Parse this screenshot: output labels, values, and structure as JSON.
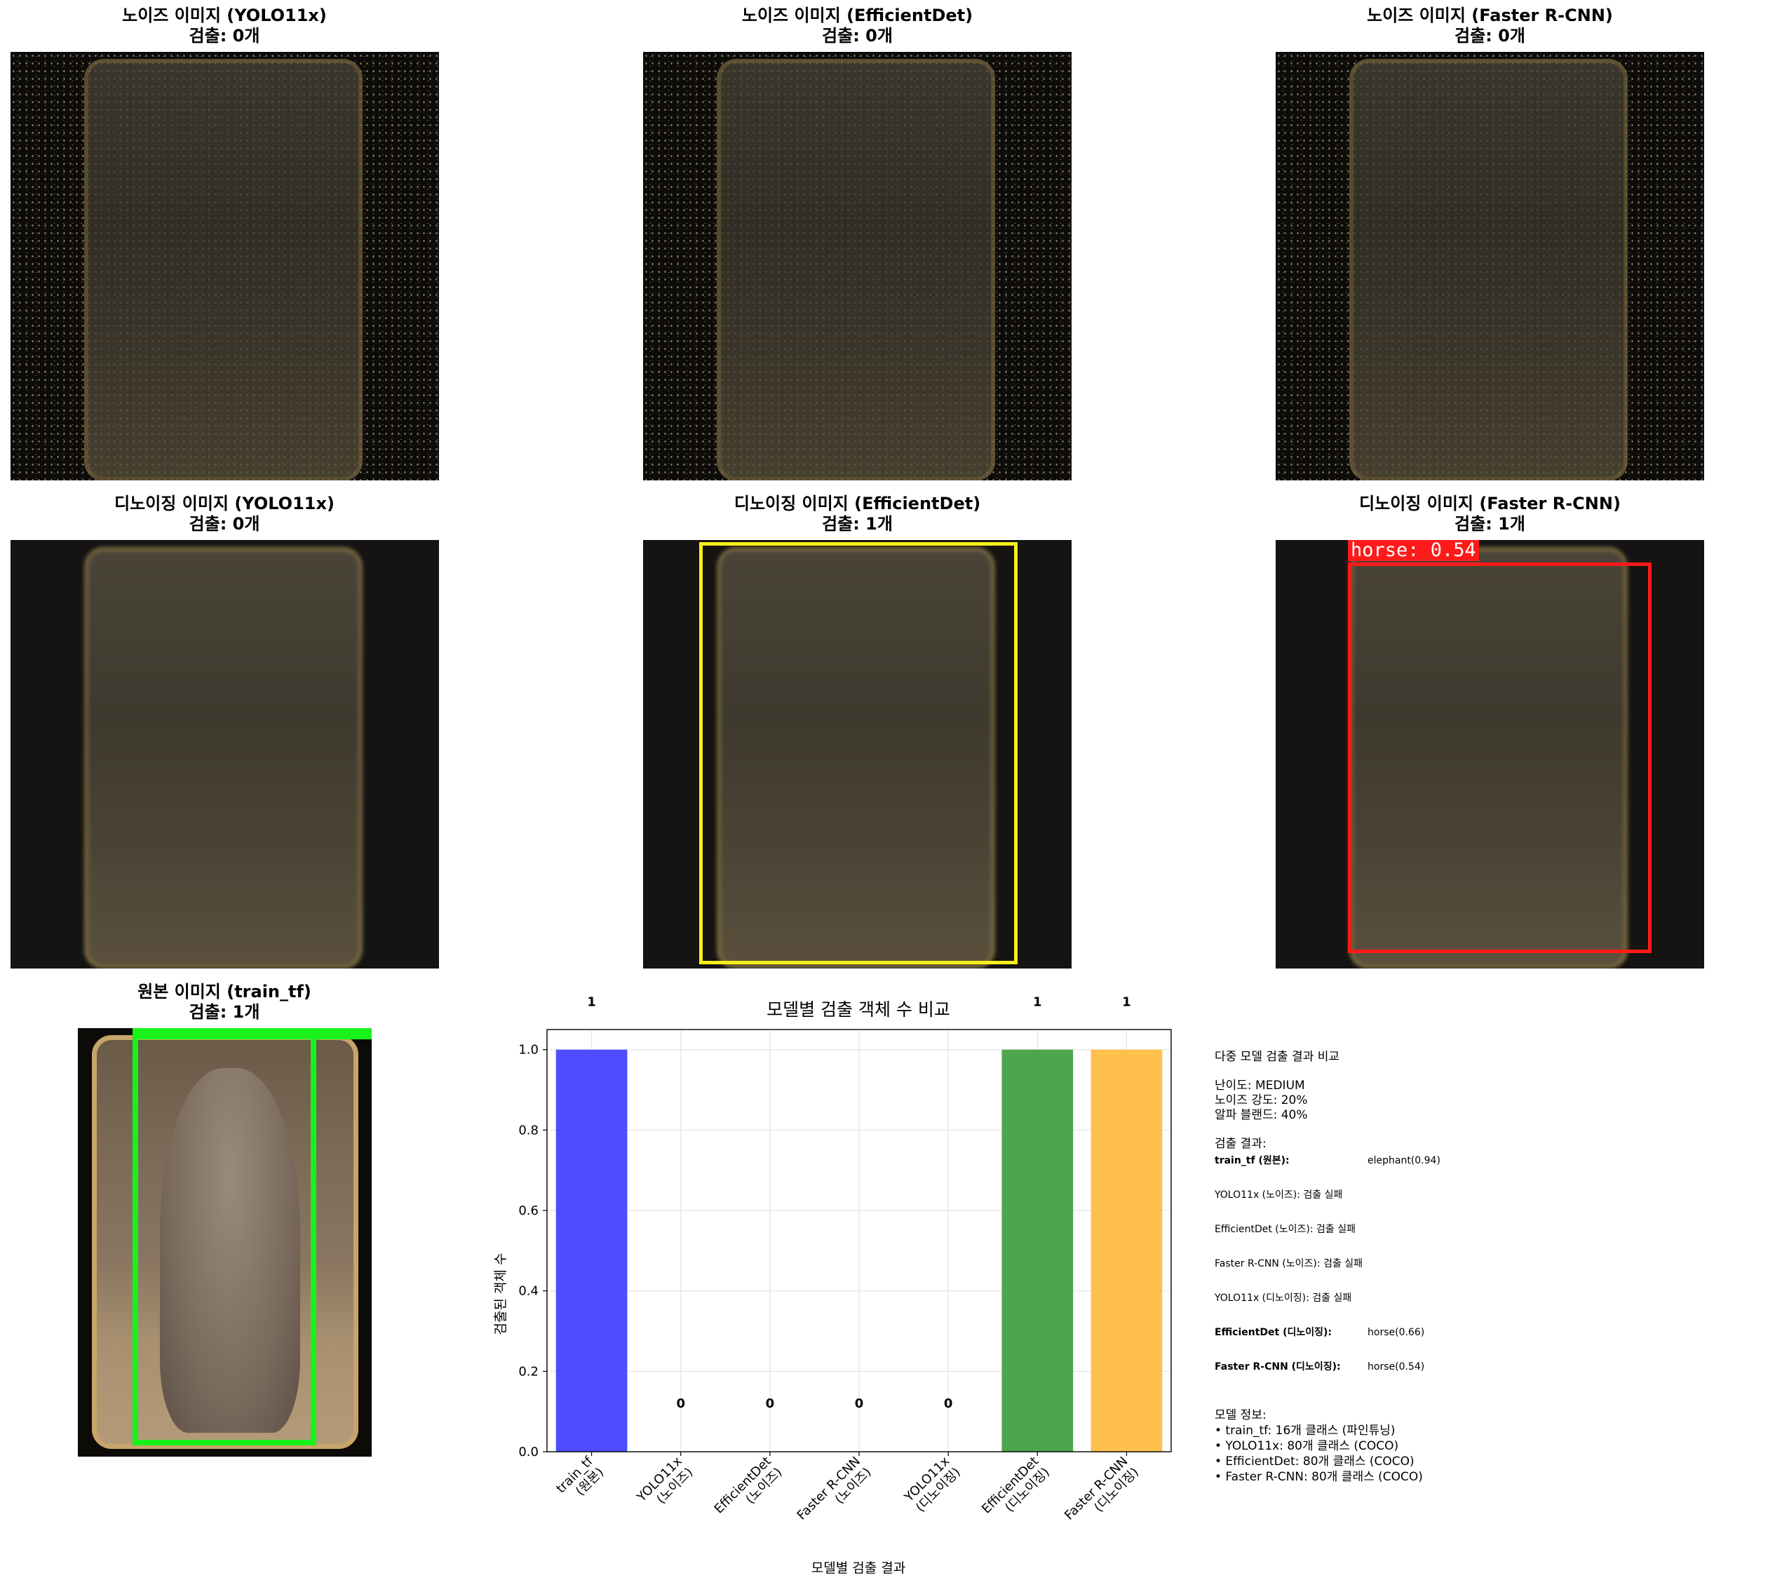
{
  "panels": {
    "noisy_yolo": {
      "title1": "노이즈 이미지 (YOLO11x)",
      "title2": "검출: 0개"
    },
    "noisy_effdet": {
      "title1": "노이즈 이미지 (EfficientDet)",
      "title2": "검출: 0개"
    },
    "noisy_frcnn": {
      "title1": "노이즈 이미지 (Faster R-CNN)",
      "title2": "검출: 0개"
    },
    "denoised_yolo": {
      "title1": "디노이징 이미지 (YOLO11x)",
      "title2": "검출: 0개"
    },
    "denoised_effdet": {
      "title1": "디노이징 이미지 (EfficientDet)",
      "title2": "검출: 1개"
    },
    "denoised_frcnn": {
      "title1": "디노이징 이미지 (Faster R-CNN)",
      "title2": "검출: 1개",
      "det_label": "horse: 0.54"
    },
    "original": {
      "title1": "원본 이미지 (train_tf)",
      "title2": "검출: 1개"
    }
  },
  "colors": {
    "effdet_box": "#f5ef1a",
    "frcnn_box": "#ff1a1a",
    "original_box": "#19f21a"
  },
  "chart_data": {
    "type": "bar",
    "title": "모델별 검출 객체 수 비교",
    "xlabel": "모델별 검출 결과",
    "ylabel": "검출된 객체 수",
    "ylim": [
      0,
      1.05
    ],
    "yticks": [
      "0.0",
      "0.2",
      "0.4",
      "0.6",
      "0.8",
      "1.0"
    ],
    "grid": true,
    "categories": [
      [
        "train_tf",
        "(원본)"
      ],
      [
        "YOLO11x",
        "(노이즈)"
      ],
      [
        "EfficientDet",
        "(노이즈)"
      ],
      [
        "Faster R-CNN",
        "(노이즈)"
      ],
      [
        "YOLO11x",
        "(디노이징)"
      ],
      [
        "EfficientDet",
        "(디노이징)"
      ],
      [
        "Faster R-CNN",
        "(디노이징)"
      ]
    ],
    "values": [
      1,
      0,
      0,
      0,
      0,
      1,
      1
    ],
    "value_labels": [
      "1",
      "0",
      "0",
      "0",
      "0",
      "1",
      "1"
    ],
    "bar_colors": [
      "#4d4dff",
      "#cccccc",
      "#cccccc",
      "#cccccc",
      "#cccccc",
      "#4da64d",
      "#ffbf4d"
    ]
  },
  "info": {
    "heading": "다중 모델 검출 결과 비교",
    "difficulty": "난이도: MEDIUM",
    "noise": "노이즈 강도: 20%",
    "alpha": "알파 블랜드: 40%",
    "results_heading": "검출 결과:",
    "results": [
      {
        "label": "train_tf (원본):",
        "value": "elephant(0.94)",
        "bold": true
      },
      {
        "label": "YOLO11x (노이즈): 검출 실패",
        "value": "",
        "bold": false
      },
      {
        "label": "EfficientDet (노이즈): 검출 실패",
        "value": "",
        "bold": false
      },
      {
        "label": "Faster R-CNN (노이즈): 검출 실패",
        "value": "",
        "bold": false
      },
      {
        "label": "YOLO11x (디노이징): 검출 실패",
        "value": "",
        "bold": false
      },
      {
        "label": "EfficientDet (디노이징):",
        "value": "horse(0.66)",
        "bold": true
      },
      {
        "label": "Faster R-CNN (디노이징):",
        "value": "horse(0.54)",
        "bold": true
      }
    ],
    "model_heading": "모델 정보:",
    "models": [
      "• train_tf: 16개 클래스 (파인튜닝)",
      "• YOLO11x: 80개 클래스 (COCO)",
      "• EfficientDet: 80개 클래스 (COCO)",
      "• Faster R-CNN: 80개 클래스 (COCO)"
    ]
  }
}
